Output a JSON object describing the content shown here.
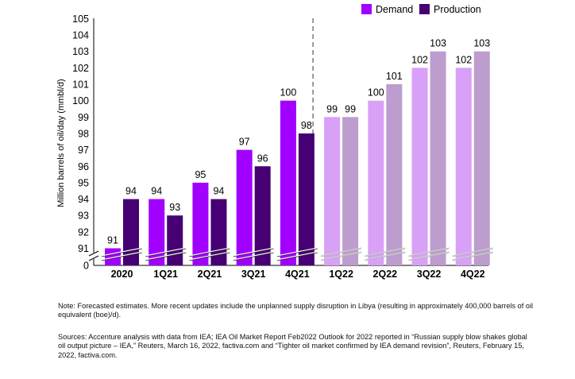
{
  "chart_data": {
    "type": "bar",
    "ylabel": "Million barrels of oil/day (mmbl/d)",
    "y_ticks": [
      "0",
      "91",
      "92",
      "93",
      "94",
      "95",
      "96",
      "97",
      "98",
      "99",
      "100",
      "101",
      "102",
      "103",
      "104",
      "105"
    ],
    "ylim": [
      90,
      105
    ],
    "axis_break": true,
    "categories": [
      "2020",
      "1Q21",
      "2Q21",
      "3Q21",
      "4Q21",
      "1Q22",
      "2Q22",
      "3Q22",
      "4Q22"
    ],
    "forecast_from_category": "1Q22",
    "legend_position": "top-right",
    "series": [
      {
        "name": "Demand",
        "values": [
          91,
          94,
          95,
          97,
          100,
          99,
          100,
          102,
          102
        ],
        "labels": [
          "91",
          "94",
          "95",
          "97",
          "100",
          "99",
          "100",
          "102",
          "102"
        ],
        "color": "#a100ff",
        "forecast_color": "#d9a0f7"
      },
      {
        "name": "Production",
        "values": [
          94,
          93,
          94,
          96,
          98,
          99,
          101,
          103,
          103
        ],
        "labels": [
          "94",
          "93",
          "94",
          "96",
          "98",
          "99",
          "101",
          "103",
          "103"
        ],
        "color": "#460073",
        "forecast_color": "#bd9cce"
      }
    ]
  },
  "notes": {
    "note": "Note: Forecasted estimates. More recent updates include the unplanned supply disruption in Libya (resulting in approximately 400,000 barrels of oil equivalent (boe)/d).",
    "sources": "Sources: Accenture analysis with data from IEA; IEA Oil Market Report Feb2022 Outlook for 2022 reported in “Russian supply blow shakes global oil output picture – IEA,” Reuters, March 16, 2022, factiva.com and “Tighter oil market confirmed by IEA demand revision”, Reuters, February 15, 2022, factiva.com."
  }
}
